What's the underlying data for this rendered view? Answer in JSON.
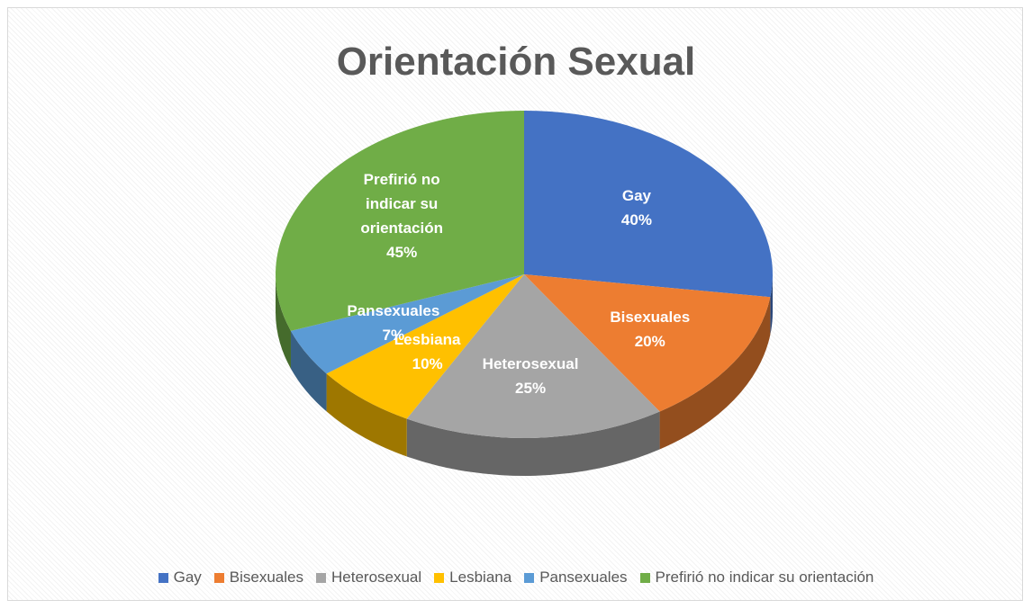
{
  "chart_data": {
    "type": "pie3d",
    "title": "Orientación Sexual",
    "categories": [
      "Gay",
      "Bisexuales",
      "Heterosexual",
      "Lesbiana",
      "Pansexuales",
      "Prefirió no indicar su orientación"
    ],
    "values": [
      40,
      20,
      25,
      10,
      7,
      45
    ],
    "value_labels": [
      "40%",
      "20%",
      "25%",
      "10%",
      "7%",
      "45%"
    ],
    "colors": [
      "#4472c4",
      "#ed7d31",
      "#a5a5a5",
      "#ffc000",
      "#5b9bd5",
      "#70ad47"
    ],
    "legend": "bottom"
  }
}
